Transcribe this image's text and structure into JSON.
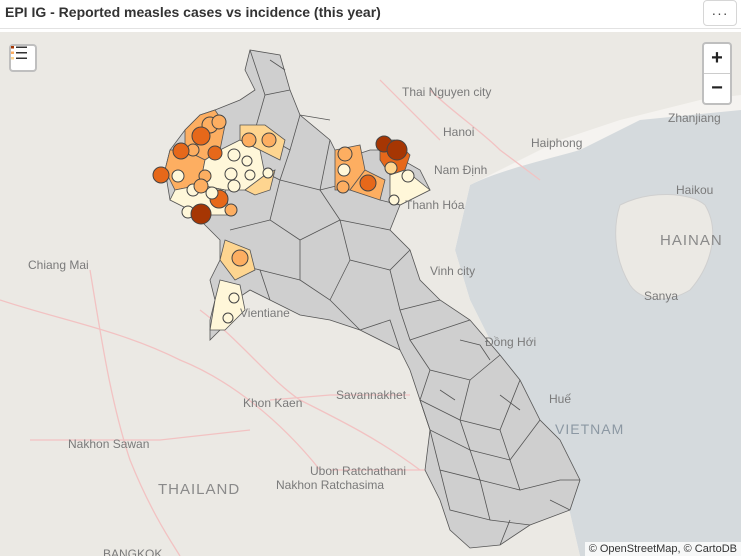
{
  "header": {
    "title": "EPI IG - Reported measles cases vs incidence (this year)",
    "menu_label": "···"
  },
  "map": {
    "zoom_in": "+",
    "zoom_out": "−",
    "attribution": "© OpenStreetMap, © CartoDB",
    "legend_icon": "legend-list-icon",
    "colors": {
      "land": "#ebe9e4",
      "sea": "#d5dadd",
      "district_fill": "#cfcfcf",
      "district_stroke": "#555555",
      "incidence_scale": [
        "#fff7d9",
        "#fed590",
        "#fdae61",
        "#e6681a",
        "#a63603"
      ]
    },
    "labels": [
      {
        "text": "Thai Nguyen city"
      },
      {
        "text": "Hanoi"
      },
      {
        "text": "Haiphong"
      },
      {
        "text": "Nam Định"
      },
      {
        "text": "Thanh Hóa"
      },
      {
        "text": "Zhanjiang"
      },
      {
        "text": "Haikou"
      },
      {
        "text": "HAINAN"
      },
      {
        "text": "Sanya"
      },
      {
        "text": "Chiang Mai"
      },
      {
        "text": "Vientiane"
      },
      {
        "text": "Vinh city"
      },
      {
        "text": "Đồng Hới"
      },
      {
        "text": "Huế"
      },
      {
        "text": "Khon Kaen"
      },
      {
        "text": "Savannakhet"
      },
      {
        "text": "Nakhon Sawan"
      },
      {
        "text": "VIETNAM"
      },
      {
        "text": "Ubon Ratchathani"
      },
      {
        "text": "THAILAND"
      },
      {
        "text": "Nakhon Ratchasima"
      },
      {
        "text": "BANGKOK"
      }
    ]
  }
}
